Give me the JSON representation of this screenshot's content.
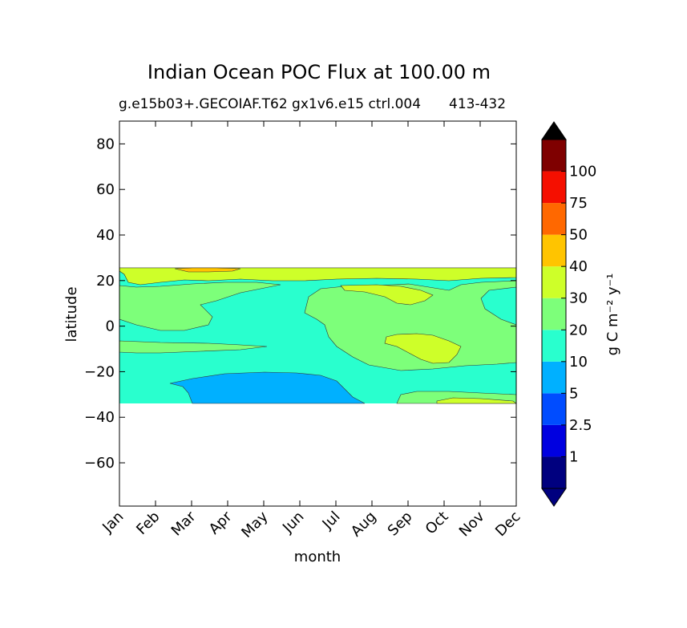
{
  "chart_data": {
    "type": "heatmap",
    "title": "Indian Ocean POC Flux at 100.00 m",
    "subtitle_left": "g.e15b03+.GECOIAF.T62 gx1v6.e15 ctrl.004",
    "subtitle_right": "413-432",
    "xlabel": "month",
    "ylabel": "latitude",
    "x_ticks": [
      "Jan",
      "Feb",
      "Mar",
      "Apr",
      "May",
      "Jun",
      "Jul",
      "Aug",
      "Sep",
      "Oct",
      "Nov",
      "Dec"
    ],
    "y_ticks": [
      80,
      60,
      40,
      20,
      0,
      -20,
      -40,
      -60
    ],
    "ylim": [
      -79,
      90
    ],
    "data_lat_range": [
      -34,
      25
    ],
    "colorbar": {
      "label": "g C m⁻² y⁻¹",
      "levels": [
        "1",
        "2.5",
        "5",
        "10",
        "20",
        "30",
        "40",
        "50",
        "75",
        "100"
      ],
      "colors": [
        "#00007f",
        "#0000e0",
        "#004cff",
        "#00b0ff",
        "#29ffce",
        "#7dff7a",
        "#ceff29",
        "#ffc400",
        "#ff6800",
        "#f50f00",
        "#7f0000"
      ],
      "extend": "both"
    }
  }
}
